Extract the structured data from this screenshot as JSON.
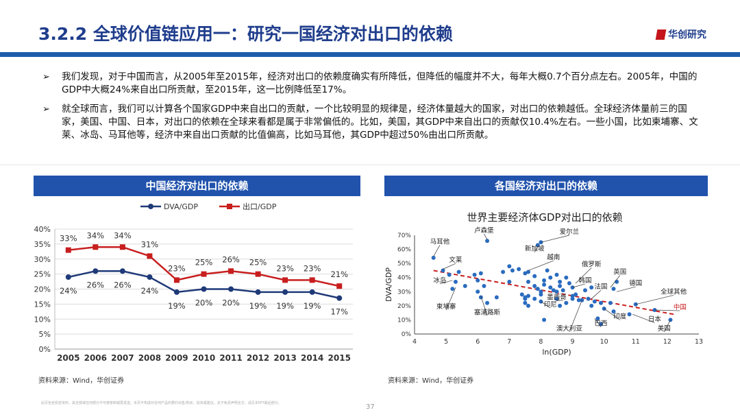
{
  "header": {
    "title": "3.2.2 全球价值链应用一：研究一国经济对出口的依赖",
    "logo_text": "华创研究"
  },
  "bullets": [
    "我们发现，对于中国而言，从2005年至2015年，经济对出口的依赖度确实有所降低，但降低的幅度并不大，每年大概0.7个百分点左右。2005年，中国的GDP中大概24%来自出口所贡献，至2015年，这一比例降低至17%。",
    "就全球而言，我们可以计算各个国家GDP中来自出口的贡献，一个比较明显的规律是，经济体量越大的国家，对出口的依赖越低。全球经济体量前三的国家，美国、中国、日本，对出口的依赖在全球来看都是属于非常偏低的。比如，美国，其GDP中来自出口的贡献仅10.4%左右。一些小国，比如柬埔寨、文莱、冰岛、马耳他等，经济中来自出口贡献的比值偏高，比如马耳他，其GDP中超过50%由出口所贡献。"
  ],
  "bullet_marker": "➢",
  "left_panel": {
    "header": "中国经济对出口的依赖",
    "source": "资料来源：Wind，华创证券"
  },
  "right_panel": {
    "header": "各国经济对出口的依赖",
    "source": "资料来源：Wind，华创证券"
  },
  "footer": {
    "disclaimer": "此页包含机密资料，其全部或任何部分不可被复制或再发送。本页不构成对任何产品的要约出售/购买、投资或建议。关于免责声明全文，请见本PPT最后部分。",
    "page": "37"
  },
  "colors": {
    "dva": "#1f3a78",
    "export": "#c81e1e",
    "bar": "#2153ad",
    "dot": "#2a6cbf"
  },
  "chart_data": [
    {
      "type": "line",
      "title": "",
      "categories": [
        "2005",
        "2006",
        "2007",
        "2008",
        "2009",
        "2010",
        "2011",
        "2012",
        "2013",
        "2014",
        "2015"
      ],
      "series": [
        {
          "name": "DVA/GDP",
          "values": [
            24,
            26,
            26,
            24,
            19,
            20,
            20,
            19,
            19,
            19,
            17
          ],
          "labels": [
            "24%",
            "26%",
            "26%",
            "24%",
            "19%",
            "20%",
            "20%",
            "19%",
            "19%",
            "19%",
            "17%"
          ]
        },
        {
          "name": "出口/GDP",
          "values": [
            33,
            34,
            34,
            31,
            23,
            25,
            26,
            25,
            23,
            23,
            21
          ],
          "labels": [
            "33%",
            "34%",
            "34%",
            "31%",
            "23%",
            "25%",
            "26%",
            "25%",
            "23%",
            "23%",
            "21%"
          ]
        }
      ],
      "ylim": [
        0,
        40
      ],
      "yticks": [
        "0%",
        "5%",
        "10%",
        "15%",
        "20%",
        "25%",
        "30%",
        "35%",
        "40%"
      ],
      "legend": "top"
    },
    {
      "type": "scatter",
      "title": "世界主要经济体GDP对出口的依赖",
      "xlabel": "ln(GDP)",
      "ylabel": "DVA/GDP",
      "xlim": [
        4,
        13
      ],
      "ylim": [
        0,
        70
      ],
      "xticks": [
        "4",
        "5",
        "6",
        "7",
        "8",
        "9",
        "10",
        "11",
        "12",
        "13"
      ],
      "yticks": [
        "0%",
        "10%",
        "20%",
        "30%",
        "40%",
        "50%",
        "60%",
        "70%"
      ],
      "points": [
        [
          4.6,
          54
        ],
        [
          6.3,
          66
        ],
        [
          7.9,
          63
        ],
        [
          8.0,
          65
        ],
        [
          4.9,
          45
        ],
        [
          5.1,
          42
        ],
        [
          5.2,
          32
        ],
        [
          5.3,
          37
        ],
        [
          5.4,
          44
        ],
        [
          5.6,
          34
        ],
        [
          5.9,
          42
        ],
        [
          6.0,
          38
        ],
        [
          6.1,
          43
        ],
        [
          6.0,
          30
        ],
        [
          6.1,
          26
        ],
        [
          6.2,
          34
        ],
        [
          6.3,
          22
        ],
        [
          6.6,
          26
        ],
        [
          6.8,
          44
        ],
        [
          7.0,
          37
        ],
        [
          7.0,
          48
        ],
        [
          7.1,
          45
        ],
        [
          7.3,
          46
        ],
        [
          7.5,
          43
        ],
        [
          7.6,
          44
        ],
        [
          7.8,
          41
        ],
        [
          7.6,
          37
        ],
        [
          7.8,
          34
        ],
        [
          7.4,
          28
        ],
        [
          7.5,
          26
        ],
        [
          7.5,
          25
        ],
        [
          7.5,
          22
        ],
        [
          7.6,
          20
        ],
        [
          7.6,
          27
        ],
        [
          7.8,
          25
        ],
        [
          7.9,
          32
        ],
        [
          8.0,
          28
        ],
        [
          8.0,
          30
        ],
        [
          8.1,
          35
        ],
        [
          8.1,
          38
        ],
        [
          8.2,
          45
        ],
        [
          8.3,
          40
        ],
        [
          8.3,
          33
        ],
        [
          8.4,
          31
        ],
        [
          8.5,
          42
        ],
        [
          8.5,
          30
        ],
        [
          8.6,
          34
        ],
        [
          8.6,
          37
        ],
        [
          8.7,
          31
        ],
        [
          8.8,
          40
        ],
        [
          8.9,
          36
        ],
        [
          9.0,
          33
        ],
        [
          9.0,
          27
        ],
        [
          8.0,
          23
        ],
        [
          8.1,
          10
        ],
        [
          8.5,
          25
        ],
        [
          8.6,
          20
        ],
        [
          8.8,
          22
        ],
        [
          9.1,
          28
        ],
        [
          9.2,
          24
        ],
        [
          9.3,
          24
        ],
        [
          9.4,
          31
        ],
        [
          9.6,
          33
        ],
        [
          9.0,
          25
        ],
        [
          9.5,
          25
        ],
        [
          9.7,
          23
        ],
        [
          9.9,
          22
        ],
        [
          10.0,
          18
        ],
        [
          10.2,
          22
        ],
        [
          10.3,
          32
        ],
        [
          10.4,
          37
        ],
        [
          9.6,
          20
        ],
        [
          9.8,
          11
        ],
        [
          9.9,
          7
        ],
        [
          10.3,
          16
        ],
        [
          10.8,
          14
        ],
        [
          11.0,
          21
        ],
        [
          11.6,
          17
        ],
        [
          12.1,
          10
        ]
      ],
      "trend": {
        "from": [
          4.6,
          45
        ],
        "to": [
          12.2,
          14
        ]
      },
      "annotations": [
        "马耳他",
        "卢森堡",
        "爱尔兰",
        "新加坡",
        "越南",
        "文莱",
        "冰岛",
        "俄罗斯",
        "韩国",
        "英国",
        "德国",
        "法国",
        "全球其他",
        "墨西哥",
        "中国",
        "印尼",
        "柬埔寨",
        "塞浦路斯",
        "印度",
        "日本",
        "巴西",
        "澳大利亚",
        "美国"
      ]
    }
  ]
}
